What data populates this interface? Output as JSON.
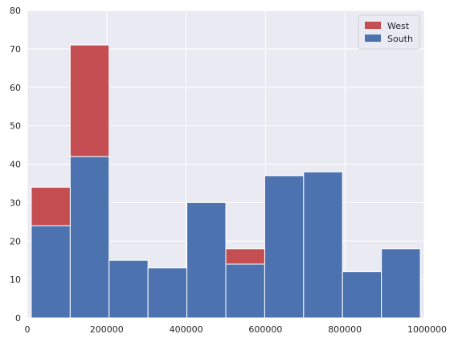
{
  "chart_data": {
    "type": "bar",
    "stacked": true,
    "style": "seaborn-darkgrid",
    "bins": [
      [
        10000,
        108000
      ],
      [
        108000,
        206000
      ],
      [
        206000,
        304000
      ],
      [
        304000,
        402000
      ],
      [
        402000,
        500000
      ],
      [
        500000,
        598000
      ],
      [
        598000,
        696000
      ],
      [
        696000,
        794000
      ],
      [
        794000,
        892000
      ],
      [
        892000,
        990000
      ]
    ],
    "series": [
      {
        "name": "South",
        "color": "#4c72b0",
        "values": [
          24,
          42,
          15,
          13,
          30,
          14,
          37,
          38,
          12,
          18
        ]
      },
      {
        "name": "West",
        "color": "#c44e52",
        "values": [
          10,
          29,
          0,
          0,
          0,
          4,
          0,
          0,
          0,
          0
        ]
      }
    ],
    "legend_order": [
      "West",
      "South"
    ],
    "legend_position": "top-right",
    "xlim": [
      0,
      1000000
    ],
    "ylim": [
      0,
      80
    ],
    "xticks": [
      0,
      200000,
      400000,
      600000,
      800000,
      1000000
    ],
    "xtick_labels": [
      "0",
      "200000",
      "400000",
      "600000",
      "800000",
      "1000000"
    ],
    "yticks": [
      0,
      10,
      20,
      30,
      40,
      50,
      60,
      70,
      80
    ],
    "ytick_labels": [
      "0",
      "10",
      "20",
      "30",
      "40",
      "50",
      "60",
      "70",
      "80"
    ],
    "grid": true,
    "background_color": "#eaeaf2",
    "grid_color": "#ffffff"
  }
}
